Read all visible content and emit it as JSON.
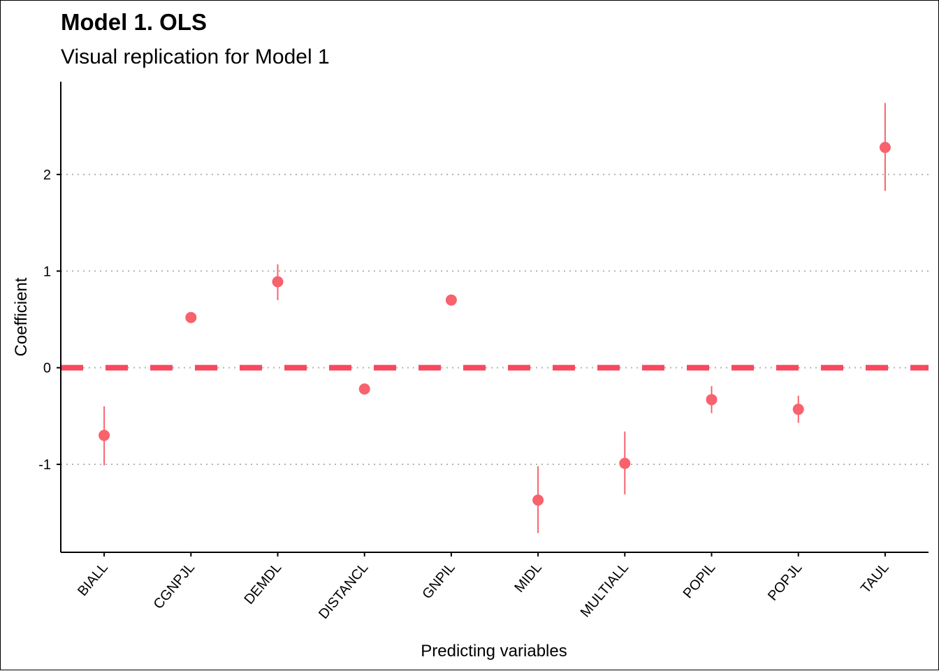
{
  "chart_data": {
    "type": "scatter",
    "title": "Model 1. OLS",
    "subtitle": "Visual replication for Model 1",
    "xlabel": "Predicting variables",
    "ylabel": "Coefficient",
    "categories": [
      "BIALL",
      "CGNPJL",
      "DEMDL",
      "DISTANCL",
      "GNPIL",
      "MIDL",
      "MULTIALL",
      "POPIL",
      "POPJL",
      "TAUL"
    ],
    "estimates": [
      -0.7,
      0.52,
      0.89,
      -0.22,
      0.7,
      -1.37,
      -0.99,
      -0.33,
      -0.43,
      2.28
    ],
    "lower": [
      -1.01,
      0.47,
      0.7,
      -0.26,
      0.66,
      -1.71,
      -1.31,
      -0.47,
      -0.57,
      1.83
    ],
    "upper": [
      -0.4,
      0.57,
      1.07,
      -0.19,
      0.74,
      -1.02,
      -0.66,
      -0.19,
      -0.29,
      2.74
    ],
    "yticks": [
      -1,
      0,
      1,
      2
    ],
    "ytick_labels": [
      "-1",
      "0",
      "1",
      "2"
    ],
    "ylim": [
      -1.91,
      2.96
    ],
    "grid": "horizontal dotted at major ticks",
    "reference_line": 0,
    "colors": {
      "point": "#F8626D",
      "reference": "#F8485E",
      "grid": "#B3B3B3"
    }
  }
}
